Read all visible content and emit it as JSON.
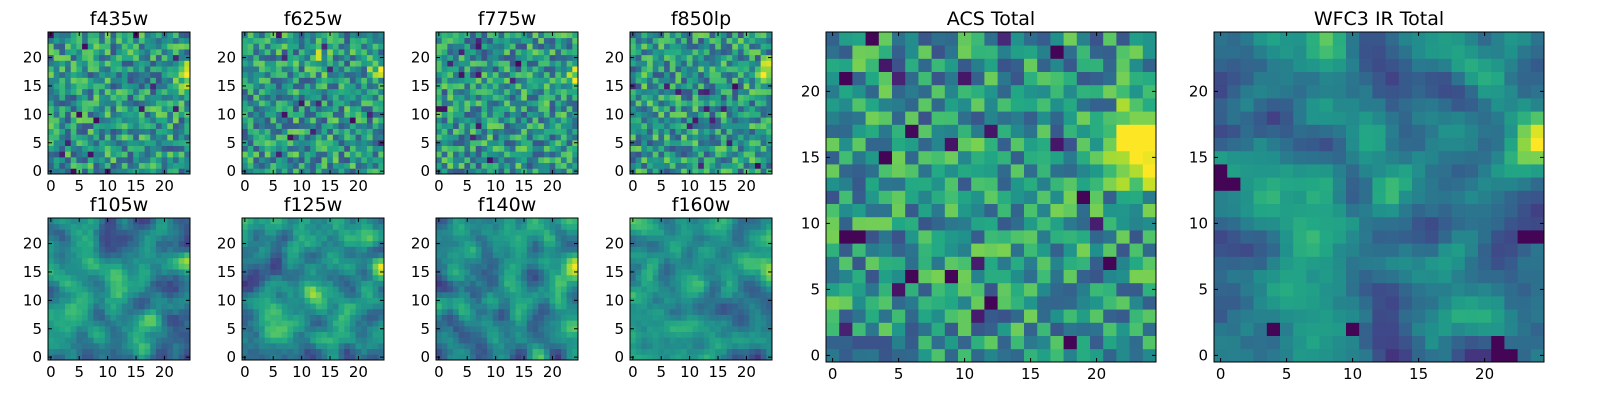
{
  "figure": {
    "colormap": "viridis",
    "colors": {
      "low": "#440154",
      "mid": "#21918c",
      "high": "#fde725",
      "frame": "#000000"
    }
  },
  "chart_data": [
    {
      "type": "heatmap",
      "title": "f435w",
      "grid_size": 25,
      "xlim": [
        -0.5,
        24.5
      ],
      "ylim": [
        -0.5,
        24.5
      ],
      "xticks": [
        "0",
        "5",
        "10",
        "15",
        "20"
      ],
      "yticks": [
        "0",
        "5",
        "10",
        "15",
        "20"
      ],
      "origin": "lower",
      "value_range": [
        0,
        1
      ],
      "pattern": "noise",
      "seed": 11,
      "bright_spots": [
        [
          24,
          17,
          0.8
        ]
      ]
    },
    {
      "type": "heatmap",
      "title": "f625w",
      "grid_size": 25,
      "xlim": [
        -0.5,
        24.5
      ],
      "ylim": [
        -0.5,
        24.5
      ],
      "xticks": [
        "0",
        "5",
        "10",
        "15",
        "20"
      ],
      "yticks": [
        "0",
        "5",
        "10",
        "15",
        "20"
      ],
      "origin": "lower",
      "value_range": [
        0,
        1
      ],
      "pattern": "noise",
      "seed": 23,
      "bright_spots": [
        [
          24,
          17,
          1.0
        ],
        [
          13,
          20,
          0.5
        ]
      ]
    },
    {
      "type": "heatmap",
      "title": "f775w",
      "grid_size": 25,
      "xlim": [
        -0.5,
        24.5
      ],
      "ylim": [
        -0.5,
        24.5
      ],
      "xticks": [
        "0",
        "5",
        "10",
        "15",
        "20"
      ],
      "yticks": [
        "0",
        "5",
        "10",
        "15",
        "20"
      ],
      "origin": "lower",
      "value_range": [
        0,
        1
      ],
      "pattern": "noise",
      "seed": 37,
      "bright_spots": [
        [
          24,
          17,
          1.0
        ]
      ]
    },
    {
      "type": "heatmap",
      "title": "f850lp",
      "grid_size": 25,
      "xlim": [
        -0.5,
        24.5
      ],
      "ylim": [
        -0.5,
        24.5
      ],
      "xticks": [
        "0",
        "5",
        "10",
        "15",
        "20"
      ],
      "yticks": [
        "0",
        "5",
        "10",
        "15",
        "20"
      ],
      "origin": "lower",
      "value_range": [
        0,
        1
      ],
      "pattern": "noise",
      "seed": 41,
      "bright_spots": [
        [
          24,
          17,
          1.0
        ]
      ]
    },
    {
      "type": "heatmap",
      "title": "f105w",
      "grid_size": 25,
      "xlim": [
        -0.5,
        24.5
      ],
      "ylim": [
        -0.5,
        24.5
      ],
      "xticks": [
        "0",
        "5",
        "10",
        "15",
        "20"
      ],
      "yticks": [
        "0",
        "5",
        "10",
        "15",
        "20"
      ],
      "origin": "lower",
      "value_range": [
        0,
        1
      ],
      "pattern": "smooth",
      "seed": 53,
      "bright_spots": [
        [
          24,
          17,
          0.8
        ],
        [
          12,
          12,
          0.6
        ],
        [
          16,
          1,
          0.8
        ]
      ]
    },
    {
      "type": "heatmap",
      "title": "f125w",
      "grid_size": 25,
      "xlim": [
        -0.5,
        24.5
      ],
      "ylim": [
        -0.5,
        24.5
      ],
      "xticks": [
        "0",
        "5",
        "10",
        "15",
        "20"
      ],
      "yticks": [
        "0",
        "5",
        "10",
        "15",
        "20"
      ],
      "origin": "lower",
      "value_range": [
        0,
        1
      ],
      "pattern": "smooth",
      "seed": 67,
      "bright_spots": [
        [
          24,
          16,
          0.9
        ],
        [
          11,
          11,
          0.5
        ]
      ]
    },
    {
      "type": "heatmap",
      "title": "f140w",
      "grid_size": 25,
      "xlim": [
        -0.5,
        24.5
      ],
      "ylim": [
        -0.5,
        24.5
      ],
      "xticks": [
        "0",
        "5",
        "10",
        "15",
        "20"
      ],
      "yticks": [
        "0",
        "5",
        "10",
        "15",
        "20"
      ],
      "origin": "lower",
      "value_range": [
        0,
        1
      ],
      "pattern": "smooth",
      "seed": 79,
      "bright_spots": [
        [
          24,
          15,
          1.0
        ],
        [
          14,
          13,
          0.5
        ]
      ]
    },
    {
      "type": "heatmap",
      "title": "f160w",
      "grid_size": 25,
      "xlim": [
        -0.5,
        24.5
      ],
      "ylim": [
        -0.5,
        24.5
      ],
      "xticks": [
        "0",
        "5",
        "10",
        "15",
        "20"
      ],
      "yticks": [
        "0",
        "5",
        "10",
        "15",
        "20"
      ],
      "origin": "lower",
      "value_range": [
        0,
        1
      ],
      "pattern": "smooth",
      "seed": 83,
      "bright_spots": [
        [
          24,
          16,
          1.0
        ],
        [
          12,
          12,
          0.7
        ]
      ]
    },
    {
      "type": "heatmap",
      "title": "ACS Total",
      "grid_size": 25,
      "xlim": [
        -0.5,
        24.5
      ],
      "ylim": [
        -0.5,
        24.5
      ],
      "xticks": [
        "0",
        "5",
        "10",
        "15",
        "20"
      ],
      "yticks": [
        "0",
        "5",
        "10",
        "15",
        "20"
      ],
      "origin": "lower",
      "value_range": [
        0,
        1
      ],
      "pattern": "noise",
      "seed": 97,
      "bright_spots": [
        [
          24,
          15,
          1.0
        ],
        [
          24,
          17,
          1.0
        ],
        [
          23,
          16,
          0.9
        ]
      ],
      "dark_spots": [
        [
          1,
          21
        ],
        [
          3,
          24
        ],
        [
          4,
          15
        ],
        [
          1,
          9
        ],
        [
          2,
          9
        ],
        [
          17,
          23
        ],
        [
          19,
          12
        ],
        [
          21,
          7
        ],
        [
          12,
          4
        ],
        [
          18,
          1
        ],
        [
          9,
          6
        ],
        [
          6,
          6
        ]
      ]
    },
    {
      "type": "heatmap",
      "title": "WFC3 IR Total",
      "grid_size": 25,
      "xlim": [
        -0.5,
        24.5
      ],
      "ylim": [
        -0.5,
        24.5
      ],
      "xticks": [
        "0",
        "5",
        "10",
        "15",
        "20"
      ],
      "yticks": [
        "0",
        "5",
        "10",
        "15",
        "20"
      ],
      "origin": "lower",
      "value_range": [
        0,
        1
      ],
      "pattern": "smooth",
      "seed": 101,
      "bright_spots": [
        [
          24,
          16,
          1.0
        ],
        [
          13,
          13,
          0.7
        ]
      ],
      "dark_spots": [
        [
          0,
          14
        ],
        [
          0,
          13
        ],
        [
          1,
          13
        ],
        [
          23,
          9
        ],
        [
          24,
          9
        ],
        [
          21,
          0
        ],
        [
          22,
          0
        ],
        [
          21,
          1
        ],
        [
          4,
          2
        ],
        [
          10,
          2
        ]
      ]
    }
  ]
}
